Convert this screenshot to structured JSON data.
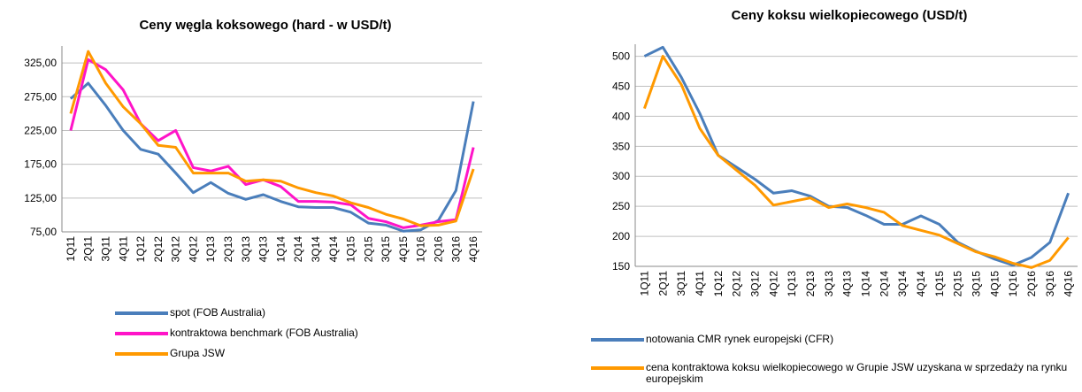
{
  "chart_data": [
    {
      "type": "line",
      "title": "Ceny węgla koksowego (hard - w USD/t)",
      "categories": [
        "1Q11",
        "2Q11",
        "3Q11",
        "4Q11",
        "1Q12",
        "2Q12",
        "3Q12",
        "4Q12",
        "1Q13",
        "2Q13",
        "3Q13",
        "4Q13",
        "1Q14",
        "2Q14",
        "3Q14",
        "4Q14",
        "1Q15",
        "2Q15",
        "3Q15",
        "4Q15",
        "1Q16",
        "2Q16",
        "3Q16",
        "4Q16"
      ],
      "series": [
        {
          "name": "spot (FOB Australia)",
          "color": "#4a7ebb",
          "values": [
            272,
            295,
            262,
            225,
            197,
            190,
            162,
            133,
            148,
            132,
            123,
            130,
            120,
            112,
            111,
            111,
            104,
            88,
            85,
            76,
            78,
            92,
            136,
            268
          ]
        },
        {
          "name": "kontraktowa benchmark (FOB Australia)",
          "color": "#ff14c8",
          "values": [
            225,
            330,
            315,
            285,
            235,
            210,
            225,
            170,
            165,
            172,
            145,
            152,
            142,
            120,
            120,
            119,
            115,
            95,
            90,
            81,
            85,
            90,
            93,
            200
          ]
        },
        {
          "name": "Grupa JSW",
          "color": "#ff9900",
          "values": [
            250,
            342,
            295,
            260,
            235,
            203,
            200,
            162,
            162,
            162,
            150,
            152,
            150,
            140,
            133,
            128,
            118,
            111,
            101,
            94,
            84,
            85,
            91,
            168
          ]
        }
      ],
      "ylim": [
        75,
        350
      ],
      "yticks": [
        {
          "value": 75,
          "label": "75,00"
        },
        {
          "value": 125,
          "label": "125,00"
        },
        {
          "value": 175,
          "label": "175,00"
        },
        {
          "value": 225,
          "label": "225,00"
        },
        {
          "value": 275,
          "label": "275,00"
        },
        {
          "value": 325,
          "label": "325,00"
        }
      ],
      "grid": true
    },
    {
      "type": "line",
      "title": "Ceny koksu  wielkopiecowego (USD/t)",
      "categories": [
        "1Q11",
        "2Q11",
        "3Q11",
        "4Q11",
        "1Q12",
        "2Q12",
        "3Q12",
        "4Q12",
        "1Q13",
        "2Q13",
        "3Q13",
        "4Q13",
        "1Q14",
        "2Q14",
        "3Q14",
        "4Q14",
        "1Q15",
        "2Q15",
        "3Q15",
        "4Q15",
        "1Q16",
        "2Q16",
        "3Q16",
        "4Q16"
      ],
      "series": [
        {
          "name": "notowania CMR rynek europejski (CFR)",
          "color": "#4a7ebb",
          "values": [
            500,
            515,
            465,
            405,
            335,
            315,
            295,
            272,
            276,
            267,
            250,
            248,
            235,
            220,
            220,
            234,
            220,
            190,
            175,
            162,
            152,
            165,
            190,
            272
          ]
        },
        {
          "name": "cena kontraktowa koksu wielkopiecowego w Grupie JSW uzyskana w sprzedaży na rynku europejskim",
          "color": "#ff9900",
          "values": [
            413,
            500,
            453,
            380,
            335,
            310,
            285,
            252,
            258,
            264,
            248,
            254,
            248,
            240,
            218,
            210,
            202,
            188,
            174,
            166,
            155,
            148,
            160,
            198
          ]
        }
      ],
      "ylim": [
        150,
        520
      ],
      "yticks": [
        150,
        200,
        250,
        300,
        350,
        400,
        450,
        500
      ],
      "grid": true
    }
  ]
}
